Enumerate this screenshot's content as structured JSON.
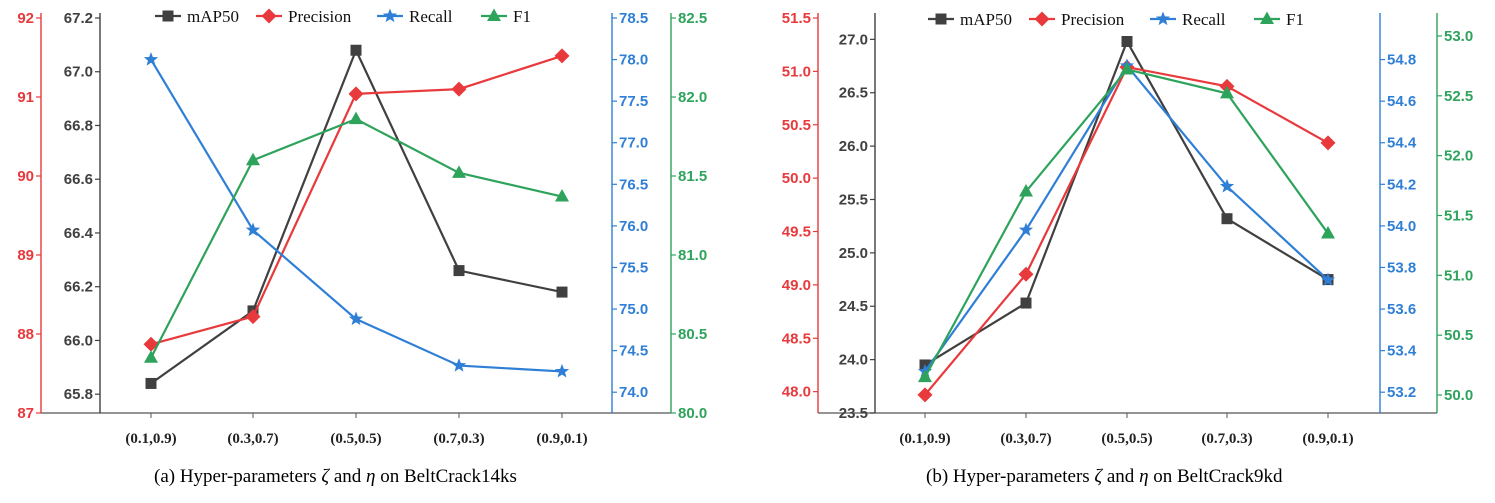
{
  "chart_data": [
    {
      "type": "line",
      "categories": [
        "(0.1,0.9)",
        "(0.3,0.7)",
        "(0.5,0.5)",
        "(0.7,0.3)",
        "(0.9,0.1)"
      ],
      "caption": {
        "prefix": "(a) Hyper-parameters ",
        "zeta": "ζ",
        "and": " and ",
        "eta": "η",
        "suffix": " on BeltCrack14ks"
      },
      "legend": [
        "mAP50",
        "Precision",
        "Recall",
        "F1"
      ],
      "legend_position": "top",
      "axes": [
        {
          "id": "precision",
          "side": "left-outer",
          "color": "#E8393C",
          "range": [
            87,
            92
          ],
          "ticks": [
            "87",
            "88",
            "89",
            "90",
            "91",
            "92"
          ]
        },
        {
          "id": "map",
          "side": "left-inner",
          "color": "#404040",
          "range": [
            65.73,
            67.2
          ],
          "ticks": [
            "65.8",
            "66.0",
            "66.2",
            "66.4",
            "66.6",
            "66.8",
            "67.0",
            "67.2"
          ]
        },
        {
          "id": "recall",
          "side": "right-inner",
          "color": "#2F7FD6",
          "range": [
            73.75,
            78.5
          ],
          "ticks": [
            "74.0",
            "74.5",
            "75.0",
            "75.5",
            "76.0",
            "76.5",
            "77.0",
            "77.5",
            "78.0",
            "78.5"
          ]
        },
        {
          "id": "f1",
          "side": "right-outer",
          "color": "#2EA35C",
          "range": [
            80,
            82.5
          ],
          "ticks": [
            "80.0",
            "80.5",
            "81.0",
            "81.5",
            "82.0",
            "82.5"
          ]
        }
      ],
      "series": [
        {
          "name": "mAP50",
          "axis": "map",
          "marker": "square",
          "color": "#404040",
          "values": [
            65.84,
            66.11,
            67.08,
            66.26,
            66.18
          ]
        },
        {
          "name": "Precision",
          "axis": "precision",
          "marker": "diamond",
          "color": "#E8393C",
          "values": [
            87.87,
            88.22,
            91.04,
            91.1,
            91.52
          ]
        },
        {
          "name": "Recall",
          "axis": "recall",
          "marker": "star",
          "color": "#2F7FD6",
          "values": [
            78.0,
            75.95,
            74.88,
            74.32,
            74.25
          ]
        },
        {
          "name": "F1",
          "axis": "f1",
          "marker": "triangle",
          "color": "#2EA35C",
          "values": [
            80.35,
            81.6,
            81.86,
            81.52,
            81.37
          ]
        }
      ]
    },
    {
      "type": "line",
      "categories": [
        "(0.1,0.9)",
        "(0.3,0.7)",
        "(0.5,0.5)",
        "(0.7,0.3)",
        "(0.9,0.1)"
      ],
      "caption": {
        "prefix": "(b) Hyper-parameters ",
        "zeta": "ζ",
        "and": " and ",
        "eta": "η",
        "suffix": " on BeltCrack9kd"
      },
      "legend": [
        "mAP50",
        "Precision",
        "Recall",
        "F1"
      ],
      "legend_position": "top",
      "axes": [
        {
          "id": "precision",
          "side": "left-outer",
          "color": "#E8393C",
          "range": [
            47.8,
            51.5
          ],
          "ticks": [
            "48.0",
            "48.5",
            "49.0",
            "49.5",
            "50.0",
            "50.5",
            "51.0",
            "51.5"
          ]
        },
        {
          "id": "map",
          "side": "left-inner",
          "color": "#404040",
          "range": [
            23.5,
            27.2
          ],
          "ticks": [
            "23.5",
            "24.0",
            "24.5",
            "25.0",
            "25.5",
            "26.0",
            "26.5",
            "27.0"
          ]
        },
        {
          "id": "recall",
          "side": "right-inner",
          "color": "#2F7FD6",
          "range": [
            53.1,
            55.0
          ],
          "ticks": [
            "53.2",
            "53.4",
            "53.6",
            "53.8",
            "54.0",
            "54.2",
            "54.4",
            "54.6",
            "54.8"
          ]
        },
        {
          "id": "f1",
          "side": "right-outer",
          "color": "#2EA35C",
          "range": [
            49.85,
            53.15
          ],
          "ticks": [
            "50.0",
            "50.5",
            "51.0",
            "51.5",
            "52.0",
            "52.5",
            "53.0"
          ]
        }
      ],
      "series": [
        {
          "name": "mAP50",
          "axis": "map",
          "marker": "square",
          "color": "#404040",
          "values": [
            23.95,
            24.53,
            26.98,
            25.32,
            24.75
          ]
        },
        {
          "name": "Precision",
          "axis": "precision",
          "marker": "diamond",
          "color": "#E8393C",
          "values": [
            47.97,
            49.1,
            51.04,
            50.86,
            50.33
          ]
        },
        {
          "name": "Recall",
          "axis": "recall",
          "marker": "star",
          "color": "#2F7FD6",
          "values": [
            53.3,
            53.98,
            54.77,
            54.19,
            53.74
          ]
        },
        {
          "name": "F1",
          "axis": "f1",
          "marker": "triangle",
          "color": "#2EA35C",
          "values": [
            50.15,
            51.7,
            52.72,
            52.52,
            51.35
          ]
        }
      ]
    }
  ]
}
